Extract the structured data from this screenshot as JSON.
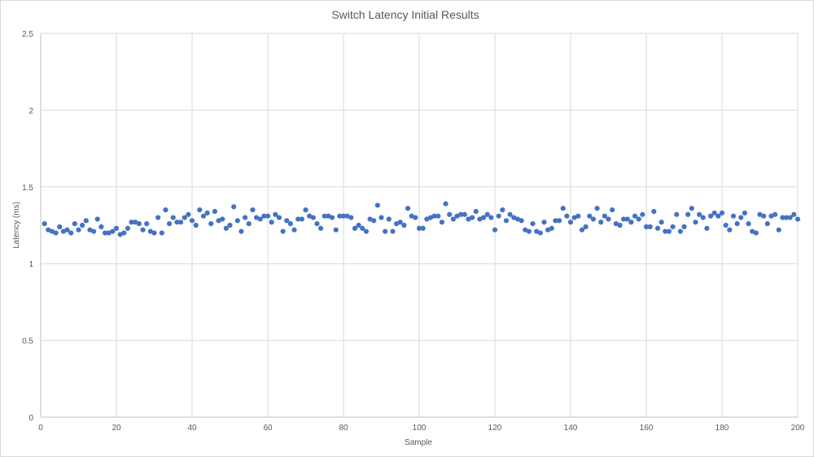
{
  "chart_data": {
    "type": "scatter",
    "title": "Switch Latency Initial Results",
    "xlabel": "Sample",
    "ylabel": "Latency (ms)",
    "xlim": [
      0,
      200
    ],
    "ylim": [
      0,
      2.5
    ],
    "x_ticks": [
      "0",
      "20",
      "40",
      "60",
      "80",
      "100",
      "120",
      "140",
      "160",
      "180",
      "200"
    ],
    "y_ticks": [
      "0",
      "0.5",
      "1",
      "1.5",
      "2",
      "2.5"
    ],
    "grid": true,
    "legend": "none",
    "marker_color": "#4472c4",
    "series": [
      {
        "x": [
          1,
          2,
          3,
          4,
          5,
          6,
          7,
          8,
          9,
          10,
          11,
          12,
          13,
          14,
          15,
          16,
          17,
          18,
          19,
          20,
          21,
          22,
          23,
          24,
          25,
          26,
          27,
          28,
          29,
          30,
          31,
          32,
          33,
          34,
          35,
          36,
          37,
          38,
          39,
          40,
          41,
          42,
          43,
          44,
          45,
          46,
          47,
          48,
          49,
          50,
          51,
          52,
          53,
          54,
          55,
          56,
          57,
          58,
          59,
          60,
          61,
          62,
          63,
          64,
          65,
          66,
          67,
          68,
          69,
          70,
          71,
          72,
          73,
          74,
          75,
          76,
          77,
          78,
          79,
          80,
          81,
          82,
          83,
          84,
          85,
          86,
          87,
          88,
          89,
          90,
          91,
          92,
          93,
          94,
          95,
          96,
          97,
          98,
          99,
          100,
          101,
          102,
          103,
          104,
          105,
          106,
          107,
          108,
          109,
          110,
          111,
          112,
          113,
          114,
          115,
          116,
          117,
          118,
          119,
          120,
          121,
          122,
          123,
          124,
          125,
          126,
          127,
          128,
          129,
          130,
          131,
          132,
          133,
          134,
          135,
          136,
          137,
          138,
          139,
          140,
          141,
          142,
          143,
          144,
          145,
          146,
          147,
          148,
          149,
          150,
          151,
          152,
          153,
          154,
          155,
          156,
          157,
          158,
          159,
          160,
          161,
          162,
          163,
          164,
          165,
          166,
          167,
          168,
          169,
          170,
          171,
          172,
          173,
          174,
          175,
          176,
          177,
          178,
          179,
          180,
          181,
          182,
          183,
          184,
          185,
          186,
          187,
          188,
          189,
          190,
          191,
          192,
          193,
          194,
          195,
          196,
          197,
          198,
          199,
          200
        ],
        "y": [
          1.26,
          1.22,
          1.21,
          1.2,
          1.24,
          1.21,
          1.22,
          1.2,
          1.26,
          1.22,
          1.25,
          1.28,
          1.22,
          1.21,
          1.29,
          1.24,
          1.2,
          1.2,
          1.21,
          1.23,
          1.19,
          1.2,
          1.23,
          1.27,
          1.27,
          1.26,
          1.22,
          1.26,
          1.21,
          1.2,
          1.3,
          1.2,
          1.35,
          1.26,
          1.3,
          1.27,
          1.27,
          1.3,
          1.32,
          1.28,
          1.25,
          1.35,
          1.31,
          1.33,
          1.26,
          1.34,
          1.28,
          1.29,
          1.23,
          1.25,
          1.37,
          1.28,
          1.21,
          1.3,
          1.26,
          1.35,
          1.3,
          1.29,
          1.31,
          1.31,
          1.27,
          1.32,
          1.3,
          1.21,
          1.28,
          1.26,
          1.22,
          1.29,
          1.29,
          1.35,
          1.31,
          1.3,
          1.26,
          1.23,
          1.31,
          1.31,
          1.3,
          1.22,
          1.31,
          1.31,
          1.31,
          1.3,
          1.23,
          1.25,
          1.23,
          1.21,
          1.29,
          1.28,
          1.38,
          1.3,
          1.21,
          1.29,
          1.21,
          1.26,
          1.27,
          1.25,
          1.36,
          1.31,
          1.3,
          1.23,
          1.23,
          1.29,
          1.3,
          1.31,
          1.31,
          1.27,
          1.39,
          1.32,
          1.29,
          1.31,
          1.32,
          1.32,
          1.29,
          1.3,
          1.34,
          1.29,
          1.3,
          1.32,
          1.3,
          1.22,
          1.31,
          1.35,
          1.28,
          1.32,
          1.3,
          1.29,
          1.28,
          1.22,
          1.21,
          1.26,
          1.21,
          1.2,
          1.27,
          1.22,
          1.23,
          1.28,
          1.28,
          1.36,
          1.31,
          1.27,
          1.3,
          1.31,
          1.22,
          1.24,
          1.31,
          1.29,
          1.36,
          1.27,
          1.31,
          1.29,
          1.35,
          1.26,
          1.25,
          1.29,
          1.29,
          1.27,
          1.31,
          1.29,
          1.32,
          1.24,
          1.24,
          1.34,
          1.23,
          1.27,
          1.21,
          1.21,
          1.24,
          1.32,
          1.21,
          1.24,
          1.32,
          1.36,
          1.27,
          1.32,
          1.3,
          1.23,
          1.31,
          1.33,
          1.31,
          1.33,
          1.25,
          1.22,
          1.31,
          1.26,
          1.3,
          1.33,
          1.26,
          1.21,
          1.2,
          1.32,
          1.31,
          1.26,
          1.31,
          1.32,
          1.22,
          1.3,
          1.3,
          1.3,
          1.32,
          1.29
        ]
      }
    ]
  }
}
